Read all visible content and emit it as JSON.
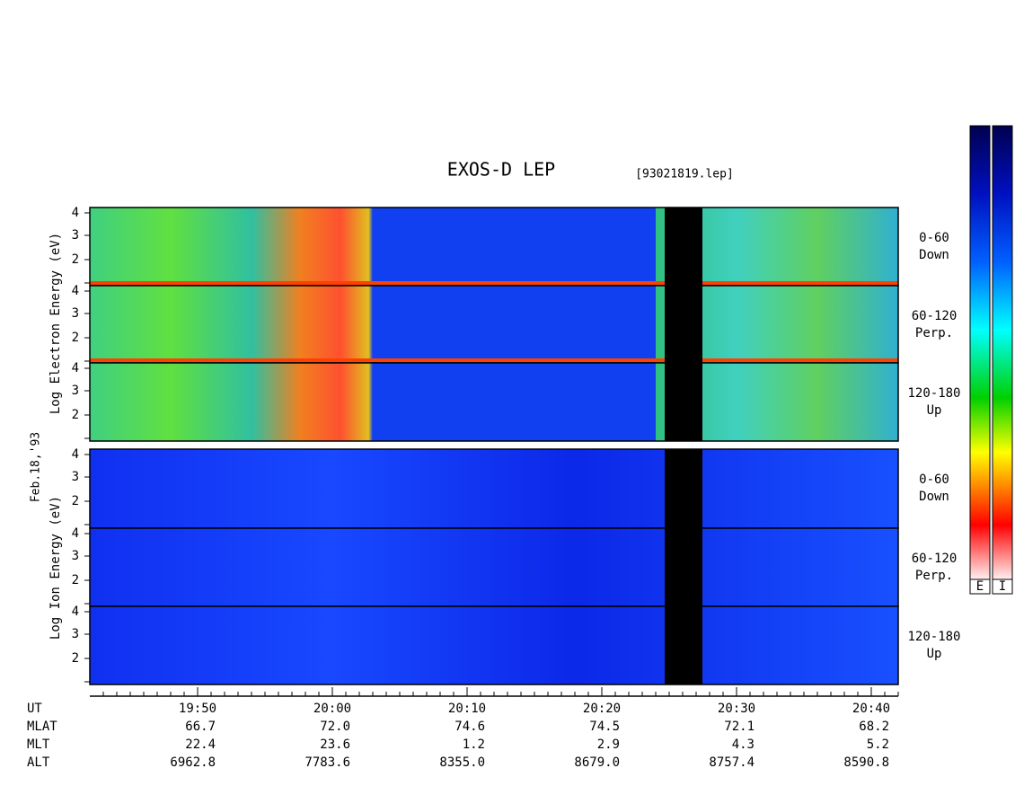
{
  "header": {
    "title": "EXOS-D LEP",
    "file": "[93021819.lep]"
  },
  "left_labels": {
    "electron": "Log  Electron  Energy (eV)",
    "date": "Feb.18,'93",
    "ion": "Log  Ion  Energy (eV)"
  },
  "panels": [
    {
      "yticks": [
        "4",
        "3",
        "2"
      ],
      "label": [
        "0-60",
        "Down"
      ]
    },
    {
      "yticks": [
        "4",
        "3",
        "2"
      ],
      "label": [
        "60-120",
        "Perp."
      ]
    },
    {
      "yticks": [
        "4",
        "3",
        "2"
      ],
      "label": [
        "120-180",
        "Up"
      ]
    },
    {
      "yticks": [
        "4",
        "3",
        "2"
      ],
      "label": [
        "0-60",
        "Down"
      ]
    },
    {
      "yticks": [
        "4",
        "3",
        "2"
      ],
      "label": [
        "60-120",
        "Perp."
      ]
    },
    {
      "yticks": [
        "4",
        "3",
        "2"
      ],
      "label": [
        "120-180",
        "Up"
      ]
    }
  ],
  "colorbar": {
    "labels": [
      "E",
      "I"
    ]
  },
  "time_axis": {
    "label": "UT",
    "ticks": [
      "19:50",
      "20:00",
      "20:10",
      "20:20",
      "20:30",
      "20:40"
    ]
  },
  "orbit": [
    {
      "name": "MLAT",
      "values": [
        "66.7",
        "72.0",
        "74.6",
        "74.5",
        "72.1",
        "68.2"
      ]
    },
    {
      "name": "MLT",
      "values": [
        "22.4",
        "23.6",
        "1.2",
        "2.9",
        "4.3",
        "5.2"
      ]
    },
    {
      "name": "ALT",
      "values": [
        "6962.8",
        "7783.6",
        "8355.0",
        "8679.0",
        "8757.4",
        "8590.8"
      ]
    }
  ]
}
